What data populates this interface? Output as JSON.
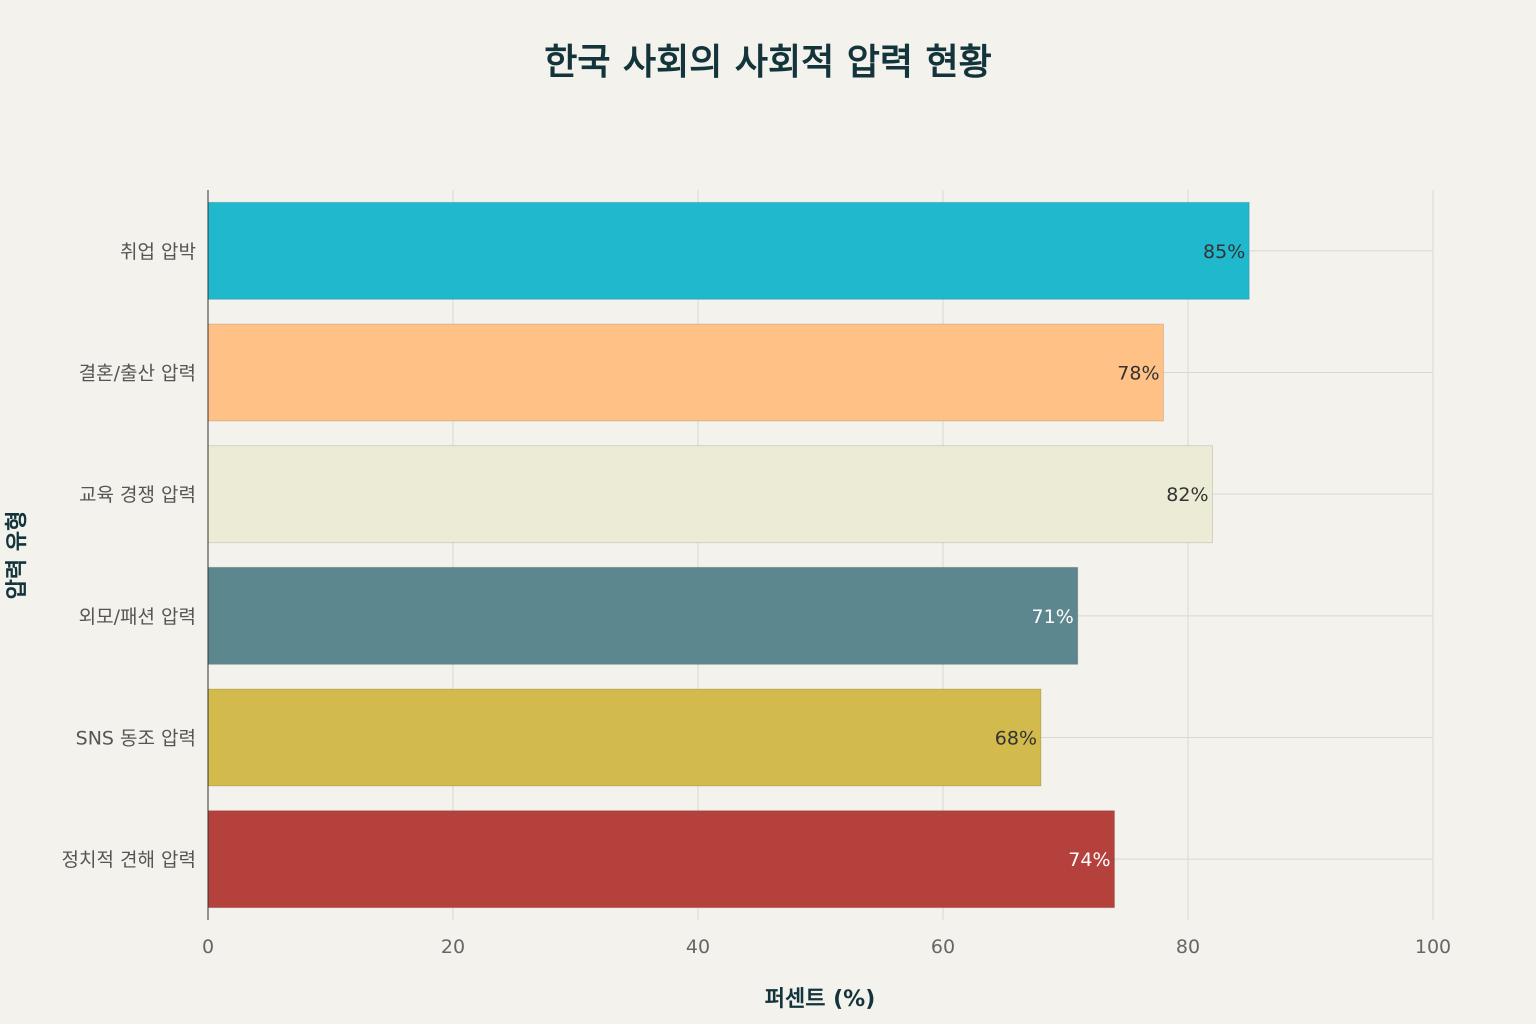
{
  "chart_data": {
    "type": "bar",
    "orientation": "horizontal",
    "title": "한국 사회의 사회적 압력 현황",
    "xlabel": "퍼센트 (%)",
    "ylabel": "압력 유형",
    "xlim": [
      0,
      100
    ],
    "xticks": [
      "0",
      "20",
      "40",
      "60",
      "80",
      "100"
    ],
    "grid": true,
    "categories": [
      "취업 압박",
      "결혼/출산 압력",
      "교육 경쟁 압력",
      "외모/패션 압력",
      "SNS 동조 압력",
      "정치적 견해 압력"
    ],
    "values": [
      85,
      78,
      82,
      71,
      68,
      74
    ],
    "value_labels": [
      "85%",
      "78%",
      "82%",
      "71%",
      "68%",
      "74%"
    ],
    "colors": [
      "#1fb8cd",
      "#ffc185",
      "#eceBD5",
      "#5d878f",
      "#d2ba4c",
      "#b4413c"
    ],
    "label_colors": [
      "#333333",
      "#333333",
      "#333333",
      "#ffffff",
      "#333333",
      "#ffffff"
    ]
  }
}
